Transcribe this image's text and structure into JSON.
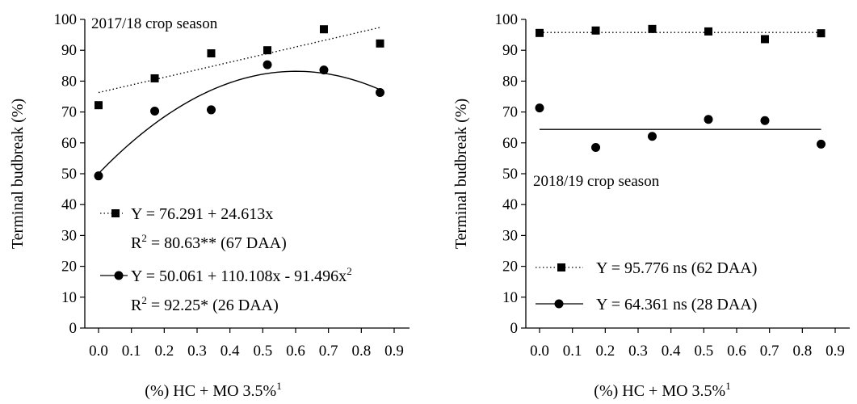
{
  "chart_data": [
    {
      "type": "scatter",
      "panel": "left",
      "season_label": "2017/18 crop season",
      "xlabel": "(%) HC + MO 3.5%",
      "xlabel_sup": "1",
      "ylabel": "Terminal budbreak (%)",
      "xlim": [
        0.0,
        0.9
      ],
      "ylim": [
        0,
        100
      ],
      "x_ticks": [
        "0.0",
        "0.1",
        "0.2",
        "0.3",
        "0.4",
        "0.5",
        "0.6",
        "0.7",
        "0.8",
        "0.9"
      ],
      "y_ticks": [
        "0",
        "10",
        "20",
        "30",
        "40",
        "50",
        "60",
        "70",
        "80",
        "90",
        "100"
      ],
      "grid": false,
      "series": [
        {
          "marker": "square",
          "line_style": "dotted",
          "x": [
            0.0,
            0.171,
            0.343,
            0.514,
            0.686,
            0.857
          ],
          "y": [
            72.2,
            80.9,
            89.0,
            90.0,
            96.8,
            92.2
          ],
          "fit": {
            "type": "linear",
            "coef": [
              76.291,
              24.613
            ]
          },
          "eq_text": "Y = 76.291 + 24.613x",
          "r2_prefix": "R",
          "r2_sup": "2",
          "r2_text": " = 80.63** (67 DAA)"
        },
        {
          "marker": "circle",
          "line_style": "solid",
          "x": [
            0.0,
            0.171,
            0.343,
            0.514,
            0.686,
            0.857
          ],
          "y": [
            49.3,
            70.3,
            70.7,
            85.3,
            83.6,
            76.3
          ],
          "fit": {
            "type": "quadratic",
            "coef": [
              50.061,
              110.108,
              -91.496
            ]
          },
          "eq_text": "Y = 50.061 + 110.108x - 91.496x",
          "eq_sup": "2",
          "r2_prefix": "R",
          "r2_sup": "2",
          "r2_text": " = 92.25* (26 DAA)"
        }
      ]
    },
    {
      "type": "scatter",
      "panel": "right",
      "season_label": "2018/19 crop season",
      "xlabel": "(%) HC + MO 3.5%",
      "xlabel_sup": "1",
      "ylabel": "Terminal budbreak (%)",
      "xlim": [
        0.0,
        0.9
      ],
      "ylim": [
        0,
        100
      ],
      "x_ticks": [
        "0.0",
        "0.1",
        "0.2",
        "0.3",
        "0.4",
        "0.5",
        "0.6",
        "0.7",
        "0.8",
        "0.9"
      ],
      "y_ticks": [
        "0",
        "10",
        "20",
        "30",
        "40",
        "50",
        "60",
        "70",
        "80",
        "90",
        "100"
      ],
      "grid": false,
      "series": [
        {
          "marker": "square",
          "line_style": "dotted",
          "x": [
            0.0,
            0.171,
            0.343,
            0.514,
            0.686,
            0.857
          ],
          "y": [
            95.6,
            96.4,
            96.9,
            96.1,
            93.6,
            95.5
          ],
          "fit": {
            "type": "constant",
            "coef": [
              95.776
            ]
          },
          "eq_text": "Y = 95.776 ns (62 DAA)"
        },
        {
          "marker": "circle",
          "line_style": "solid",
          "x": [
            0.0,
            0.171,
            0.343,
            0.514,
            0.686,
            0.857
          ],
          "y": [
            71.3,
            58.5,
            62.1,
            67.6,
            67.2,
            59.6
          ],
          "fit": {
            "type": "constant",
            "coef": [
              64.361
            ]
          },
          "eq_text": "Y = 64.361 ns (28 DAA)"
        }
      ]
    }
  ]
}
